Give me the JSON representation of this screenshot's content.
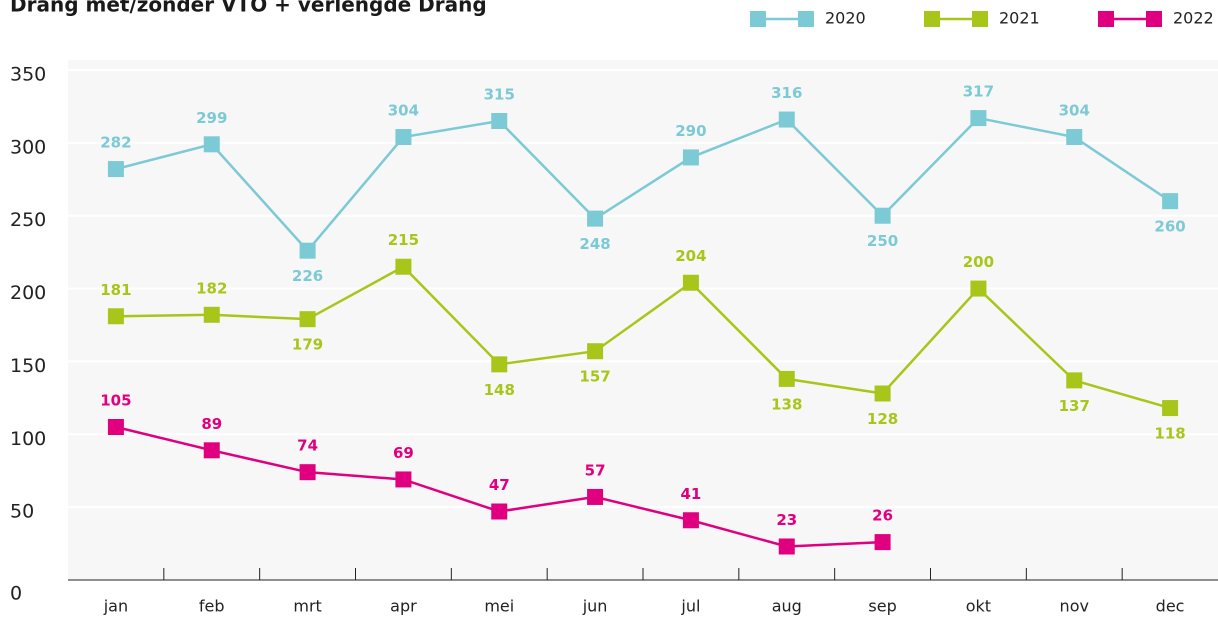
{
  "chart_data": {
    "type": "line",
    "title": "Drang met/zonder VTO + verlengde Drang",
    "categories": [
      "jan",
      "feb",
      "mrt",
      "apr",
      "mei",
      "jun",
      "jul",
      "aug",
      "sep",
      "okt",
      "nov",
      "dec"
    ],
    "series": [
      {
        "name": "2020",
        "color": "#7ccad5",
        "values": [
          282,
          299,
          226,
          304,
          315,
          248,
          290,
          316,
          250,
          317,
          304,
          260
        ]
      },
      {
        "name": "2021",
        "color": "#a8c61a",
        "values": [
          181,
          182,
          179,
          215,
          148,
          157,
          204,
          138,
          128,
          200,
          137,
          118
        ]
      },
      {
        "name": "2022",
        "color": "#e0007f",
        "values": [
          105,
          89,
          74,
          69,
          47,
          57,
          41,
          23,
          26,
          null,
          null,
          null
        ]
      }
    ],
    "ylim": [
      0,
      350
    ],
    "yticks": [
      0,
      50,
      100,
      150,
      200,
      250,
      300,
      350
    ],
    "grid": true,
    "legend": "top-right"
  }
}
